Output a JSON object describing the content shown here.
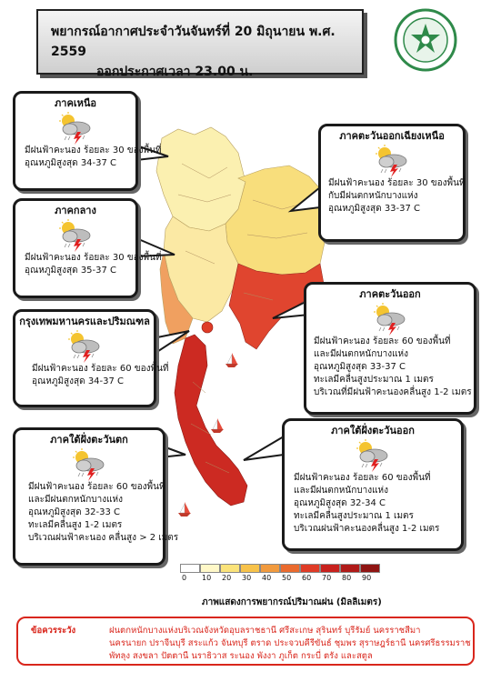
{
  "header": {
    "title": "พยากรณ์อากาศประจำวันจันทร์ที่ 20 มิถุนายน พ.ศ. 2559",
    "issued": "ออกประกาศเวลา 23.00 น."
  },
  "regions": {
    "north": {
      "name": "ภาคเหนือ",
      "lines": [
        "มีฝนฟ้าคะนอง ร้อยละ 30 ของพื้นที่",
        "อุณหภูมิสูงสุด 34-37 C"
      ]
    },
    "central": {
      "name": "ภาคกลาง",
      "lines": [
        "มีฝนฟ้าคะนอง ร้อยละ 30 ของพื้นที่",
        "อุณหภูมิสูงสุด 35-37 C"
      ]
    },
    "bangkok": {
      "name": "กรุงเทพมหานครและปริมณฑล",
      "lines": [
        "มีฝนฟ้าคะนอง ร้อยละ 60 ของพื้นที่",
        "อุณหภูมิสูงสุด 34-37 C"
      ]
    },
    "south_west": {
      "name": "ภาคใต้ฝั่งตะวันตก",
      "lines": [
        "มีฝนฟ้าคะนอง ร้อยละ 60 ของพื้นที่",
        "และมีฝนตกหนักบางแห่ง",
        "อุณหภูมิสูงสุด 32-33 C",
        "ทะเลมีคลื่นสูง 1-2 เมตร",
        "บริเวณฝนฟ้าคะนอง คลื่นสูง > 2 เมตร"
      ]
    },
    "northeast": {
      "name": "ภาคตะวันออกเฉียงเหนือ",
      "lines": [
        "มีฝนฟ้าคะนอง ร้อยละ 30 ของพื้นที่",
        "กับมีฝนตกหนักบางแห่ง",
        "อุณหภูมิสูงสุด 33-37 C"
      ]
    },
    "east": {
      "name": "ภาคตะวันออก",
      "lines": [
        "มีฝนฟ้าคะนอง ร้อยละ 60 ของพื้นที่",
        "และมีฝนตกหนักบางแห่ง",
        "อุณหภูมิสูงสุด 33-37 C",
        "ทะเลมีคลื่นสูงประมาณ 1 เมตร",
        "บริเวณที่มีฝนฟ้าคะนองคลื่นสูง 1-2 เมตร"
      ]
    },
    "south_east": {
      "name": "ภาคใต้ฝั่งตะวันออก",
      "lines": [
        "มีฝนฟ้าคะนอง ร้อยละ 60 ของพื้นที่",
        "และมีฝนตกหนักบางแห่ง",
        "อุณหภูมิสูงสุด 32-34 C",
        "ทะเลมีคลื่นสูงประมาณ 1 เมตร",
        "บริเวณฝนฟ้าคะนองคลื่นสูง 1-2 เมตร"
      ]
    }
  },
  "legend": {
    "caption": "ภาพแสดงการพยากรณ์ปริมาณฝน (มิลลิเมตร)",
    "ticks": [
      "0",
      "10",
      "20",
      "30",
      "40",
      "50",
      "60",
      "70",
      "80",
      "90"
    ],
    "colors": [
      "#ffffff",
      "#fff8c8",
      "#fbe37a",
      "#f7c24a",
      "#f19a3e",
      "#ea6a2e",
      "#df3b26",
      "#c8211d",
      "#b01a18",
      "#8f1412"
    ]
  },
  "map_colors": {
    "light_yellow": "#fbf0b0",
    "yellow": "#f8de7c",
    "orange": "#f0a060",
    "red": "#e0452f",
    "dark_red": "#cc2a22"
  },
  "warning": {
    "label": "ข้อควรระวัง",
    "line1": "ฝนตกหนักบางแห่งบริเวณจังหวัดอุบลราชธานี ศรีสะเกษ สุรินทร์ บุรีรัมย์ นครราชสีมา",
    "line2": "นครนายก ปราจีนบุรี สระแก้ว จันทบุรี ตราด ประจวบคีรีขันธ์ ชุมพร สุราษฎร์ธานี นครศรีธรรมราช",
    "line3": "พัทลุง สงขลา ปัตตานี นราธิวาส ระนอง พังงา ภูเก็ต กระบี่ ตรัง และสตูล",
    "color": "#d9261c"
  }
}
